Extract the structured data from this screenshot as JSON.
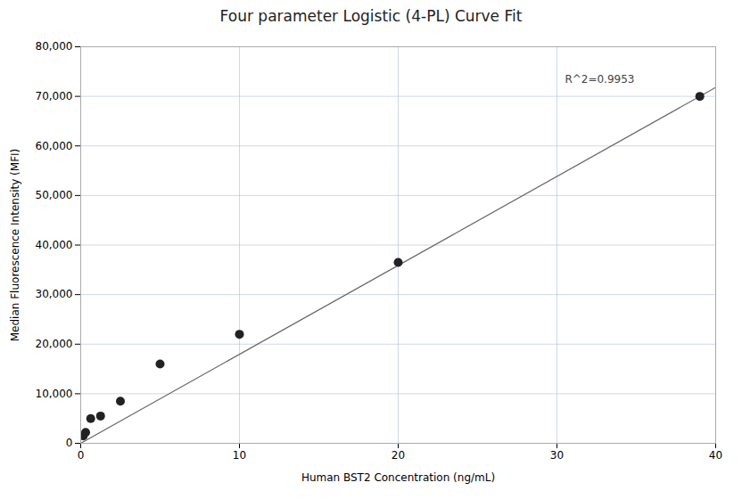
{
  "chart_data": {
    "type": "scatter",
    "title": "Four parameter Logistic (4-PL) Curve Fit",
    "xlabel": "Human BST2 Concentration (ng/mL)",
    "ylabel": "Median Fluorescence Intensity (MFI)",
    "series": [
      {
        "type": "scatter",
        "color": "#222222",
        "marker": "circle",
        "x": [
          0.16,
          0.31,
          0.63,
          1.25,
          2.5,
          5.0,
          10.0,
          20.0,
          39.0
        ],
        "values": [
          1500,
          2200,
          5000,
          5500,
          8500,
          16000,
          22000,
          36500,
          70000
        ]
      },
      {
        "type": "line",
        "color": "#666666",
        "line_style": "solid",
        "x": [
          0.0,
          40.0
        ],
        "values": [
          0,
          71795
        ]
      }
    ],
    "annotations": [
      {
        "text": "R^2=0.9953",
        "x": 30.5,
        "y": 73500
      }
    ],
    "xlim": [
      0,
      40
    ],
    "ylim": [
      0,
      80000
    ],
    "xticks": [
      0,
      10,
      20,
      30,
      40
    ],
    "yticks": [
      0,
      {
        "value": 10000,
        "label": "10,000"
      },
      {
        "value": 20000,
        "label": "20,000"
      },
      {
        "value": 30000,
        "label": "30,000"
      },
      {
        "value": 40000,
        "label": "40,000"
      },
      {
        "value": 50000,
        "label": "50,000"
      },
      {
        "value": 60000,
        "label": "60,000"
      },
      {
        "value": 70000,
        "label": "70,000"
      },
      {
        "value": 80000,
        "label": "80,000"
      }
    ],
    "grid": true
  }
}
